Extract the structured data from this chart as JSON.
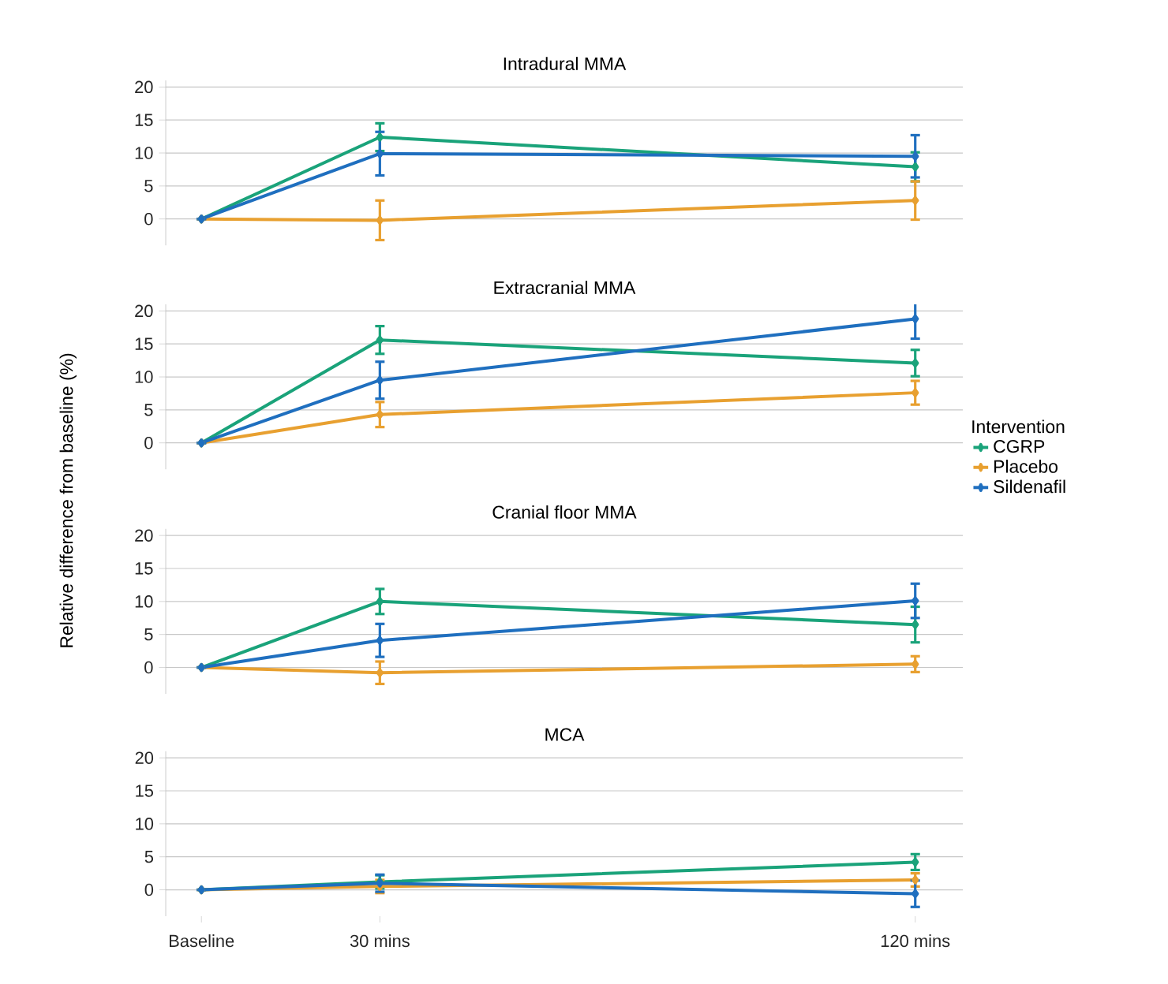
{
  "chart_data": [
    {
      "type": "line",
      "title": "Intradural MMA",
      "x": [
        0,
        30,
        120
      ],
      "xlim": [
        -6,
        128
      ],
      "xticks": [
        {
          "value": 0,
          "label": null
        },
        {
          "value": 30,
          "label": null
        },
        {
          "value": 120,
          "label": null
        }
      ],
      "ylim": [
        -4,
        21
      ],
      "yticks": [
        0,
        5,
        10,
        15,
        20
      ],
      "grid": "y",
      "marker": "diamond",
      "tick_labels": "y",
      "series": [
        {
          "color": "#1aa37a",
          "values": [
            0,
            12.4,
            7.9
          ],
          "errors": [
            null,
            2.1,
            2.2
          ]
        },
        {
          "color": "#e8a030",
          "values": [
            0,
            -0.2,
            2.8
          ],
          "errors": [
            null,
            3.0,
            2.9
          ]
        },
        {
          "color": "#1f6fbf",
          "values": [
            0,
            9.9,
            9.5
          ],
          "errors": [
            null,
            3.3,
            3.2
          ]
        }
      ]
    },
    {
      "type": "line",
      "title": "Extracranial MMA",
      "ylabel": "Relative difference from baseline (%)",
      "legend_title": "Intervention",
      "legend": "right",
      "x": [
        0,
        30,
        120
      ],
      "xlim": [
        -6,
        128
      ],
      "xticks": [
        {
          "value": 0,
          "label": null
        },
        {
          "value": 30,
          "label": null
        },
        {
          "value": 120,
          "label": null
        }
      ],
      "ylim": [
        -4,
        21
      ],
      "yticks": [
        0,
        5,
        10,
        15,
        20
      ],
      "grid": "y",
      "marker": "diamond",
      "tick_labels": "y",
      "series": [
        {
          "name": "CGRP",
          "color": "#1aa37a",
          "values": [
            0,
            15.6,
            12.1
          ],
          "errors": [
            null,
            2.1,
            2.0
          ]
        },
        {
          "name": "Placebo",
          "color": "#e8a030",
          "values": [
            0,
            4.3,
            7.6
          ],
          "errors": [
            null,
            1.9,
            1.8
          ]
        },
        {
          "name": "Sildenafil",
          "color": "#1f6fbf",
          "values": [
            0,
            9.5,
            18.8
          ],
          "errors": [
            null,
            2.8,
            3.0
          ]
        }
      ]
    },
    {
      "type": "line",
      "title": "Cranial floor MMA",
      "x": [
        0,
        30,
        120
      ],
      "xlim": [
        -6,
        128
      ],
      "xticks": [
        {
          "value": 0,
          "label": null
        },
        {
          "value": 30,
          "label": null
        },
        {
          "value": 120,
          "label": null
        }
      ],
      "ylim": [
        -4,
        21
      ],
      "yticks": [
        0,
        5,
        10,
        15,
        20
      ],
      "grid": "y",
      "marker": "diamond",
      "tick_labels": "y",
      "series": [
        {
          "color": "#1aa37a",
          "values": [
            0,
            10.0,
            6.5
          ],
          "errors": [
            null,
            1.9,
            2.7
          ]
        },
        {
          "color": "#e8a030",
          "values": [
            0,
            -0.8,
            0.5
          ],
          "errors": [
            null,
            1.7,
            1.2
          ]
        },
        {
          "color": "#1f6fbf",
          "values": [
            0,
            4.1,
            10.1
          ],
          "errors": [
            null,
            2.5,
            2.6
          ]
        }
      ]
    },
    {
      "type": "line",
      "title": "MCA",
      "x": [
        0,
        30,
        120
      ],
      "xlim": [
        -6,
        128
      ],
      "xticks": [
        {
          "value": 0,
          "label": "Baseline"
        },
        {
          "value": 30,
          "label": "30 mins"
        },
        {
          "value": 120,
          "label": "120 mins"
        }
      ],
      "ylim": [
        -4,
        21
      ],
      "yticks": [
        0,
        5,
        10,
        15,
        20
      ],
      "grid": "y",
      "marker": "diamond",
      "series": [
        {
          "color": "#1aa37a",
          "values": [
            0,
            1.2,
            4.2
          ],
          "errors": [
            null,
            1.0,
            1.2
          ]
        },
        {
          "color": "#e8a030",
          "values": [
            0,
            0.5,
            1.5
          ],
          "errors": [
            null,
            1.0,
            1.0
          ]
        },
        {
          "color": "#1f6fbf",
          "values": [
            0,
            1.0,
            -0.6
          ],
          "errors": [
            null,
            1.3,
            2.0
          ]
        }
      ]
    }
  ]
}
